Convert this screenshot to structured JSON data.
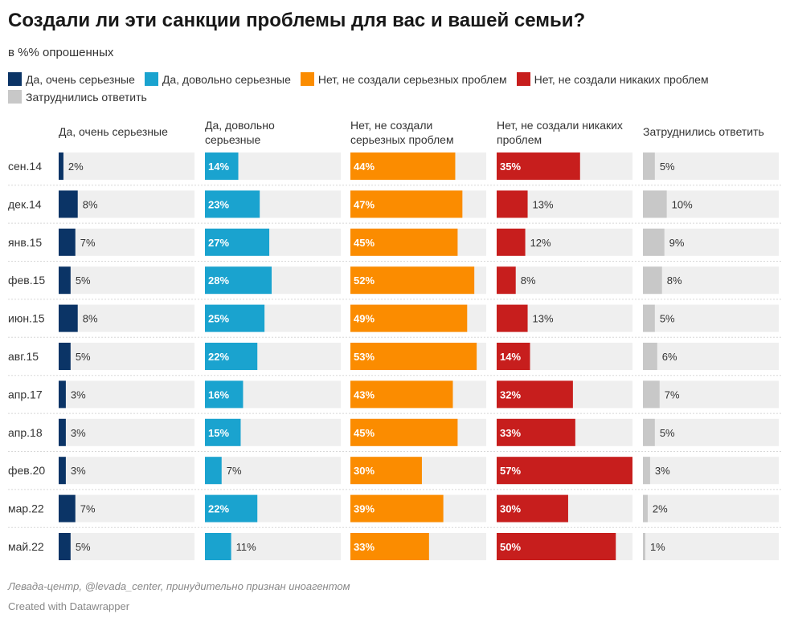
{
  "title": "Создали ли эти санкции проблемы для вас и вашей семьи?",
  "subtitle": "в %% опрошенных",
  "legend": [
    {
      "label": "Да, очень серьезные",
      "color": "#0b3466"
    },
    {
      "label": "Да, довольно серьезные",
      "color": "#1aa3cf"
    },
    {
      "label": "Нет, не создали серьезных проблем",
      "color": "#fb8c00"
    },
    {
      "label": "Нет, не создали никаких проблем",
      "color": "#c71e1d"
    },
    {
      "label": "Затруднились ответить",
      "color": "#c8c8c8"
    }
  ],
  "source": "Левада-центр, @levada_center, принудительно признан иноагентом",
  "credit": "Created with Datawrapper",
  "chart_data": {
    "type": "bar",
    "orientation": "horizontal",
    "layout": "small-multiples",
    "xlim": [
      0,
      57
    ],
    "categories": [
      "сен.14",
      "дек.14",
      "янв.15",
      "фев.15",
      "июн.15",
      "авг.15",
      "апр.17",
      "апр.18",
      "фев.20",
      "мар.22",
      "май.22"
    ],
    "series": [
      {
        "name": "Да, очень серьезные",
        "header": [
          "Да, очень серьезные"
        ],
        "color": "#0b3466",
        "values": [
          2,
          8,
          7,
          5,
          8,
          5,
          3,
          3,
          3,
          7,
          5
        ]
      },
      {
        "name": "Да, довольно серьезные",
        "header": [
          "Да, довольно",
          "серьезные"
        ],
        "color": "#1aa3cf",
        "values": [
          14,
          23,
          27,
          28,
          25,
          22,
          16,
          15,
          7,
          22,
          11
        ]
      },
      {
        "name": "Нет, не создали серьезных проблем",
        "header": [
          "Нет, не создали",
          "серьезных проблем"
        ],
        "color": "#fb8c00",
        "values": [
          44,
          47,
          45,
          52,
          49,
          53,
          43,
          45,
          30,
          39,
          33
        ]
      },
      {
        "name": "Нет, не создали никаких проблем",
        "header": [
          "Нет, не создали никаких",
          "проблем"
        ],
        "color": "#c71e1d",
        "values": [
          35,
          13,
          12,
          8,
          13,
          14,
          32,
          33,
          57,
          30,
          50
        ]
      },
      {
        "name": "Затруднились ответить",
        "header": [
          "Затруднились ответить"
        ],
        "color": "#c8c8c8",
        "values": [
          5,
          10,
          9,
          8,
          5,
          6,
          7,
          5,
          3,
          2,
          1
        ]
      }
    ],
    "value_suffix": "%"
  }
}
